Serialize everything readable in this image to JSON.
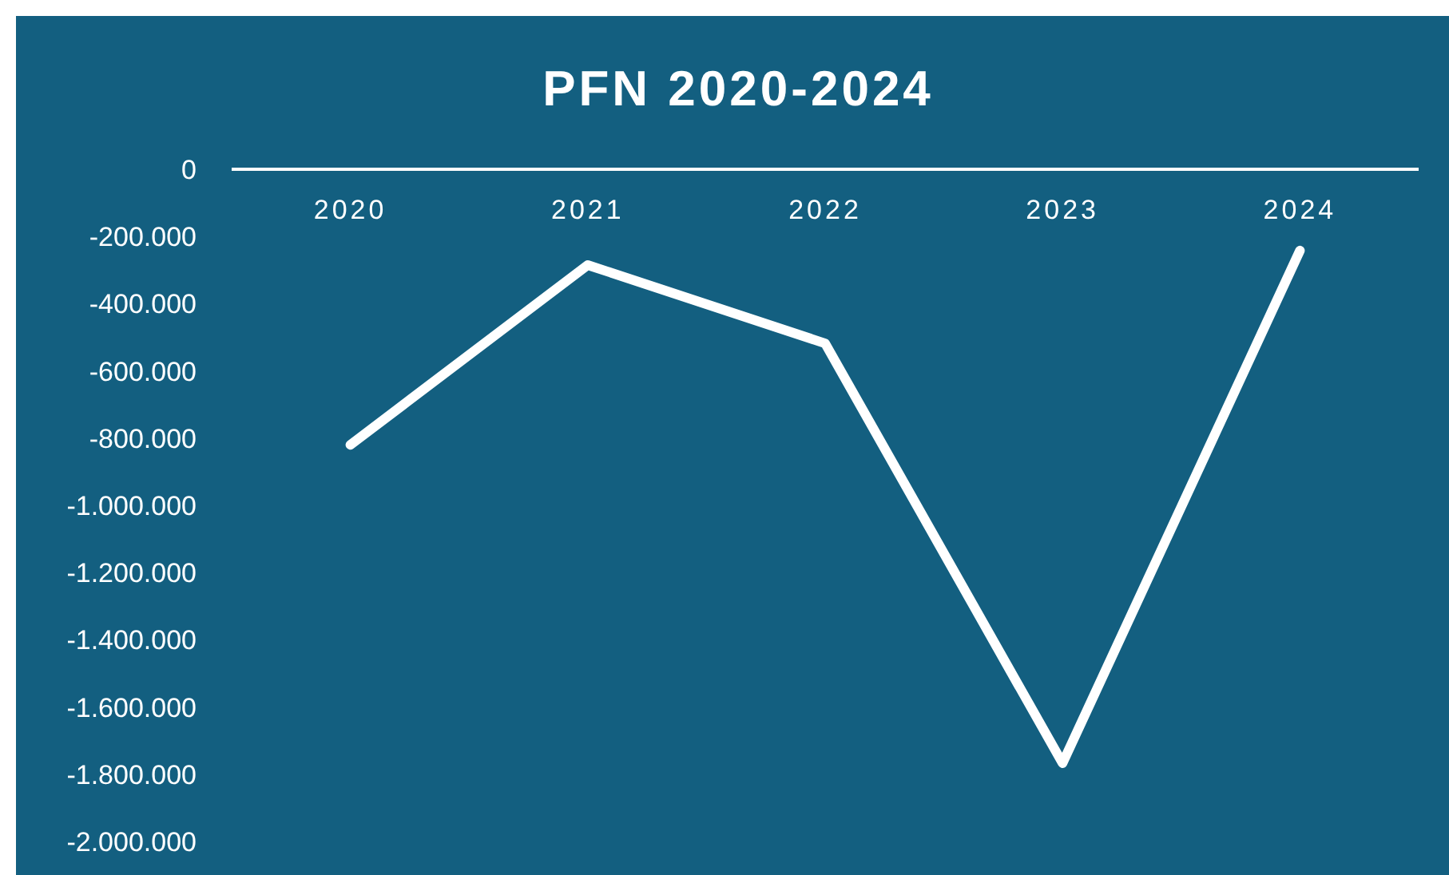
{
  "chart_data": {
    "type": "line",
    "title": "PFN 2020-2024",
    "categories": [
      "2020",
      "2021",
      "2022",
      "2023",
      "2024"
    ],
    "series": [
      {
        "color": "#ffffff",
        "values": [
          -820000,
          -285000,
          -518000,
          -1767000,
          -242000
        ]
      }
    ],
    "ylim": [
      -2000000,
      0
    ],
    "yticks": [
      0,
      {
        "value": -200000,
        "label": "-200.000"
      },
      {
        "value": -400000,
        "label": "-400.000"
      },
      {
        "value": -600000,
        "label": "-600.000"
      },
      {
        "value": -800000,
        "label": "-800.000"
      },
      {
        "value": -1000000,
        "label": "-1.000.000"
      },
      {
        "value": -1200000,
        "label": "-1.200.000"
      },
      {
        "value": -1400000,
        "label": "-1.400.000"
      },
      {
        "value": -1600000,
        "label": "-1.600.000"
      },
      {
        "value": -1800000,
        "label": "-1.800.000"
      },
      {
        "value": -2000000,
        "label": "-2.000.000"
      }
    ],
    "marker": "none",
    "line_style": "solid"
  }
}
